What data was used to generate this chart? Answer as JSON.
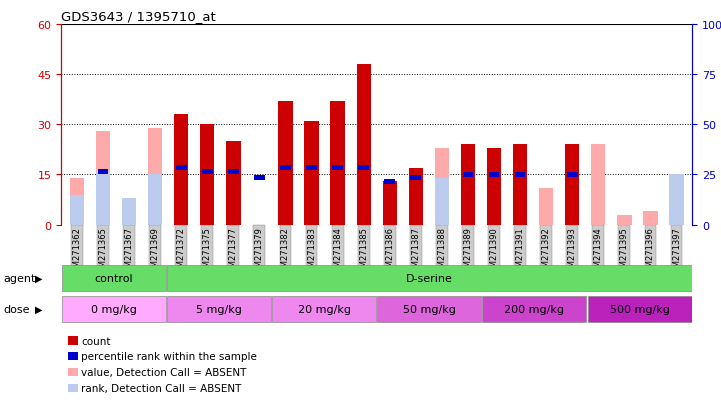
{
  "title": "GDS3643 / 1395710_at",
  "samples": [
    "GSM271362",
    "GSM271365",
    "GSM271367",
    "GSM271369",
    "GSM271372",
    "GSM271375",
    "GSM271377",
    "GSM271379",
    "GSM271382",
    "GSM271383",
    "GSM271384",
    "GSM271385",
    "GSM271386",
    "GSM271387",
    "GSM271388",
    "GSM271389",
    "GSM271390",
    "GSM271391",
    "GSM271392",
    "GSM271393",
    "GSM271394",
    "GSM271395",
    "GSM271396",
    "GSM271397"
  ],
  "count_values": [
    0,
    0,
    0,
    0,
    33,
    30,
    25,
    0,
    37,
    31,
    37,
    48,
    13,
    17,
    0,
    24,
    23,
    24,
    0,
    24,
    0,
    0,
    0,
    0
  ],
  "absent_value_heights": [
    14,
    28,
    0,
    29,
    0,
    0,
    0,
    0,
    0,
    0,
    0,
    0,
    0,
    0,
    23,
    0,
    0,
    0,
    11,
    0,
    24,
    3,
    4,
    14
  ],
  "absent_rank_heights": [
    9,
    16,
    8,
    15,
    0,
    0,
    0,
    0,
    0,
    0,
    0,
    0,
    0,
    0,
    14,
    0,
    0,
    0,
    0,
    0,
    0,
    0,
    0,
    15
  ],
  "percentile_rank": [
    0,
    16,
    0,
    0,
    17,
    16,
    16,
    14,
    17,
    17,
    17,
    17,
    13,
    14,
    0,
    15,
    15,
    15,
    0,
    15,
    0,
    0,
    0,
    0
  ],
  "ylim_left": [
    0,
    60
  ],
  "ylim_right": [
    0,
    100
  ],
  "yticks_left": [
    0,
    15,
    30,
    45,
    60
  ],
  "yticks_right": [
    0,
    25,
    50,
    75,
    100
  ],
  "agent_labels": [
    "control",
    "D-serine"
  ],
  "agent_starts": [
    0,
    4
  ],
  "agent_counts": [
    4,
    20
  ],
  "agent_color": "#66dd66",
  "dose_labels": [
    "0 mg/kg",
    "5 mg/kg",
    "20 mg/kg",
    "50 mg/kg",
    "200 mg/kg",
    "500 mg/kg"
  ],
  "dose_starts": [
    0,
    4,
    8,
    12,
    16,
    20
  ],
  "dose_counts": [
    4,
    4,
    4,
    4,
    4,
    4
  ],
  "dose_colors": [
    "#ffaaff",
    "#ee88ee",
    "#ee88ee",
    "#dd66dd",
    "#cc44cc",
    "#bb22bb"
  ],
  "bar_width": 0.55,
  "count_color": "#cc0000",
  "absent_value_color": "#ffaaaa",
  "absent_rank_color": "#bbccee",
  "percentile_color": "#0000cc",
  "left_axis_color": "#cc0000",
  "right_axis_color": "#0000cc",
  "plot_bg_color": "#ffffff",
  "xticklabel_bg": "#cccccc",
  "legend_items": [
    {
      "label": "count",
      "color": "#cc0000"
    },
    {
      "label": "percentile rank within the sample",
      "color": "#0000cc"
    },
    {
      "label": "value, Detection Call = ABSENT",
      "color": "#ffaaaa"
    },
    {
      "label": "rank, Detection Call = ABSENT",
      "color": "#bbccee"
    }
  ]
}
